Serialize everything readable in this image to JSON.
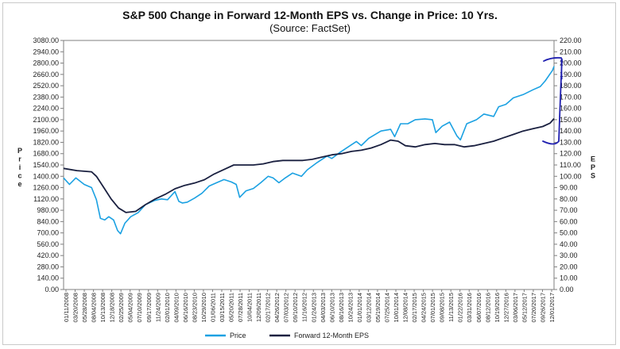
{
  "chart_data": {
    "type": "line",
    "title": "S&P 500 Change in Forward 12-Month EPS vs. Change in Price: 10 Yrs.",
    "subtitle": "(Source: FactSet)",
    "ylabel_left": "Price",
    "ylabel_right": "EPS",
    "ylim_left": [
      0,
      3080
    ],
    "ylim_right": [
      0,
      220
    ],
    "yticks_left": [
      "0.00",
      "140.00",
      "280.00",
      "420.00",
      "560.00",
      "700.00",
      "840.00",
      "980.00",
      "1120.00",
      "1260.00",
      "1400.00",
      "1540.00",
      "1680.00",
      "1820.00",
      "1960.00",
      "2100.00",
      "2240.00",
      "2380.00",
      "2520.00",
      "2660.00",
      "2800.00",
      "2940.00",
      "3080.00"
    ],
    "yticks_right": [
      "0.00",
      "10.00",
      "20.00",
      "30.00",
      "40.00",
      "50.00",
      "60.00",
      "70.00",
      "80.00",
      "90.00",
      "100.00",
      "110.00",
      "120.00",
      "130.00",
      "140.00",
      "150.00",
      "160.00",
      "170.00",
      "180.00",
      "190.00",
      "200.00",
      "210.00",
      "220.00"
    ],
    "xticks": [
      "01/11/2008",
      "03/20/2008",
      "05/28/2008",
      "08/04/2008",
      "10/13/2008",
      "12/18/2008",
      "02/25/2009",
      "05/04/2009",
      "07/10/2009",
      "09/17/2009",
      "11/24/2009",
      "02/01/2010",
      "04/09/2010",
      "06/16/2010",
      "08/23/2010",
      "10/29/2010",
      "01/06/2011",
      "03/15/2011",
      "05/20/2011",
      "07/28/2011",
      "10/04/2011",
      "12/09/2011",
      "02/17/2012",
      "04/26/2012",
      "07/03/2012",
      "09/10/2012",
      "11/16/2012",
      "01/24/2013",
      "04/03/2013",
      "06/10/2013",
      "08/16/2013",
      "10/24/2013",
      "01/01/2014",
      "03/12/2014",
      "05/19/2014",
      "07/25/2014",
      "10/01/2014",
      "12/08/2014",
      "02/17/2015",
      "04/24/2015",
      "07/01/2015",
      "09/08/2015",
      "11/13/2015",
      "01/22/2016",
      "03/31/2016",
      "06/07/2016",
      "08/12/2016",
      "10/19/2016",
      "12/27/2016",
      "03/06/2017",
      "05/12/2017",
      "07/20/2017",
      "09/26/2017",
      "12/01/2017"
    ],
    "x_range": [
      2008.03,
      2018.03
    ],
    "legend": "bottom-center",
    "grid": false,
    "series": [
      {
        "name": "Price",
        "axis": "left",
        "color": "#1ba1e2",
        "points": [
          [
            2008.03,
            1380
          ],
          [
            2008.15,
            1300
          ],
          [
            2008.28,
            1380
          ],
          [
            2008.45,
            1300
          ],
          [
            2008.6,
            1260
          ],
          [
            2008.7,
            1110
          ],
          [
            2008.78,
            880
          ],
          [
            2008.87,
            860
          ],
          [
            2008.95,
            900
          ],
          [
            2009.05,
            860
          ],
          [
            2009.13,
            730
          ],
          [
            2009.19,
            690
          ],
          [
            2009.28,
            820
          ],
          [
            2009.4,
            900
          ],
          [
            2009.55,
            950
          ],
          [
            2009.7,
            1050
          ],
          [
            2009.88,
            1100
          ],
          [
            2010.02,
            1120
          ],
          [
            2010.15,
            1110
          ],
          [
            2010.3,
            1210
          ],
          [
            2010.38,
            1090
          ],
          [
            2010.45,
            1070
          ],
          [
            2010.55,
            1080
          ],
          [
            2010.7,
            1130
          ],
          [
            2010.85,
            1190
          ],
          [
            2011.0,
            1280
          ],
          [
            2011.15,
            1320
          ],
          [
            2011.3,
            1360
          ],
          [
            2011.45,
            1330
          ],
          [
            2011.55,
            1300
          ],
          [
            2011.62,
            1140
          ],
          [
            2011.75,
            1220
          ],
          [
            2011.9,
            1250
          ],
          [
            2012.05,
            1320
          ],
          [
            2012.2,
            1400
          ],
          [
            2012.3,
            1380
          ],
          [
            2012.42,
            1320
          ],
          [
            2012.55,
            1380
          ],
          [
            2012.7,
            1440
          ],
          [
            2012.88,
            1400
          ],
          [
            2013.0,
            1480
          ],
          [
            2013.2,
            1570
          ],
          [
            2013.4,
            1650
          ],
          [
            2013.5,
            1620
          ],
          [
            2013.65,
            1690
          ],
          [
            2013.8,
            1750
          ],
          [
            2014.0,
            1830
          ],
          [
            2014.1,
            1780
          ],
          [
            2014.25,
            1870
          ],
          [
            2014.5,
            1960
          ],
          [
            2014.7,
            1980
          ],
          [
            2014.78,
            1890
          ],
          [
            2014.9,
            2050
          ],
          [
            2015.05,
            2050
          ],
          [
            2015.2,
            2100
          ],
          [
            2015.4,
            2110
          ],
          [
            2015.55,
            2100
          ],
          [
            2015.62,
            1940
          ],
          [
            2015.75,
            2020
          ],
          [
            2015.9,
            2070
          ],
          [
            2016.05,
            1900
          ],
          [
            2016.12,
            1850
          ],
          [
            2016.25,
            2050
          ],
          [
            2016.45,
            2100
          ],
          [
            2016.6,
            2170
          ],
          [
            2016.8,
            2140
          ],
          [
            2016.9,
            2260
          ],
          [
            2017.05,
            2290
          ],
          [
            2017.2,
            2370
          ],
          [
            2017.4,
            2410
          ],
          [
            2017.6,
            2470
          ],
          [
            2017.75,
            2510
          ],
          [
            2017.85,
            2580
          ],
          [
            2018.0,
            2710
          ],
          [
            2018.03,
            2760
          ]
        ]
      },
      {
        "name": "Forward 12-Month EPS",
        "axis": "right",
        "color": "#1a2040",
        "points": [
          [
            2008.03,
            107
          ],
          [
            2008.3,
            105
          ],
          [
            2008.6,
            104
          ],
          [
            2008.7,
            100
          ],
          [
            2008.85,
            90
          ],
          [
            2009.0,
            80
          ],
          [
            2009.15,
            72
          ],
          [
            2009.3,
            68
          ],
          [
            2009.5,
            69
          ],
          [
            2009.7,
            75
          ],
          [
            2009.9,
            80
          ],
          [
            2010.1,
            84
          ],
          [
            2010.3,
            89
          ],
          [
            2010.5,
            92
          ],
          [
            2010.7,
            94
          ],
          [
            2010.9,
            97
          ],
          [
            2011.1,
            102
          ],
          [
            2011.3,
            106
          ],
          [
            2011.5,
            110
          ],
          [
            2011.7,
            110
          ],
          [
            2011.9,
            110
          ],
          [
            2012.1,
            111
          ],
          [
            2012.3,
            113
          ],
          [
            2012.5,
            114
          ],
          [
            2012.7,
            114
          ],
          [
            2012.9,
            114
          ],
          [
            2013.1,
            115
          ],
          [
            2013.3,
            117
          ],
          [
            2013.5,
            119
          ],
          [
            2013.7,
            120
          ],
          [
            2013.9,
            122
          ],
          [
            2014.1,
            123
          ],
          [
            2014.3,
            125
          ],
          [
            2014.5,
            128
          ],
          [
            2014.7,
            132
          ],
          [
            2014.85,
            131
          ],
          [
            2015.0,
            127
          ],
          [
            2015.2,
            126
          ],
          [
            2015.4,
            128
          ],
          [
            2015.6,
            129
          ],
          [
            2015.8,
            128
          ],
          [
            2016.0,
            128
          ],
          [
            2016.2,
            126
          ],
          [
            2016.4,
            127
          ],
          [
            2016.6,
            129
          ],
          [
            2016.8,
            131
          ],
          [
            2017.0,
            134
          ],
          [
            2017.2,
            137
          ],
          [
            2017.4,
            140
          ],
          [
            2017.6,
            142
          ],
          [
            2017.8,
            144
          ],
          [
            2017.95,
            147
          ],
          [
            2018.03,
            151
          ]
        ]
      }
    ]
  },
  "annotations": {
    "description": "hand-drawn bracket marks",
    "color": "#2020b0"
  }
}
